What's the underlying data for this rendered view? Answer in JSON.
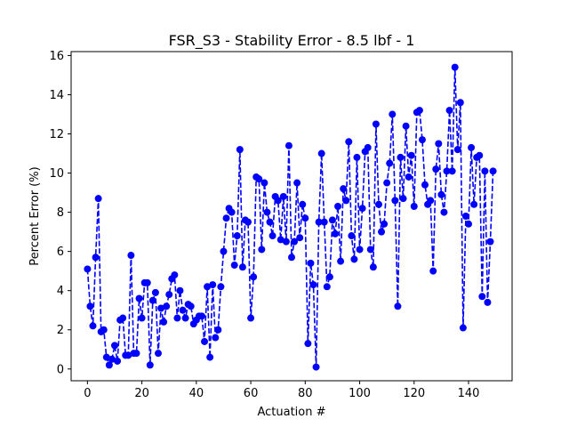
{
  "chart_data": {
    "type": "line",
    "title": "FSR_S3 - Stability Error - 8.5 lbf - 1",
    "xlabel": "Actuation #",
    "ylabel": "Percent Error (%)",
    "xlim": [
      -6,
      156
    ],
    "ylim": [
      -0.6,
      16.2
    ],
    "xticks": [
      0,
      20,
      40,
      60,
      80,
      100,
      120,
      140
    ],
    "yticks": [
      0,
      2,
      4,
      6,
      8,
      10,
      12,
      14,
      16
    ],
    "grid": false,
    "legend": false,
    "series": [
      {
        "color": "#0000ff",
        "line_style": "dashed",
        "marker": "circle",
        "x": [
          0,
          1,
          2,
          3,
          4,
          5,
          6,
          7,
          8,
          9,
          10,
          11,
          12,
          13,
          14,
          15,
          16,
          17,
          18,
          19,
          20,
          21,
          22,
          23,
          24,
          25,
          26,
          27,
          28,
          29,
          30,
          31,
          32,
          33,
          34,
          35,
          36,
          37,
          38,
          39,
          40,
          41,
          42,
          43,
          44,
          45,
          46,
          47,
          48,
          49,
          50,
          51,
          52,
          53,
          54,
          55,
          56,
          57,
          58,
          59,
          60,
          61,
          62,
          63,
          64,
          65,
          66,
          67,
          68,
          69,
          70,
          71,
          72,
          73,
          74,
          75,
          76,
          77,
          78,
          79,
          80,
          81,
          82,
          83,
          84,
          85,
          86,
          87,
          88,
          89,
          90,
          91,
          92,
          93,
          94,
          95,
          96,
          97,
          98,
          99,
          100,
          101,
          102,
          103,
          104,
          105,
          106,
          107,
          108,
          109,
          110,
          111,
          112,
          113,
          114,
          115,
          116,
          117,
          118,
          119,
          120,
          121,
          122,
          123,
          124,
          125,
          126,
          127,
          128,
          129,
          130,
          131,
          132,
          133,
          134,
          135,
          136,
          137,
          138,
          139,
          140,
          141,
          142,
          143,
          144,
          145,
          146,
          147,
          148,
          149
        ],
        "y": [
          5.1,
          3.2,
          2.2,
          5.7,
          8.7,
          1.9,
          2.0,
          0.6,
          0.2,
          0.5,
          1.2,
          0.4,
          2.5,
          2.6,
          0.7,
          0.7,
          5.8,
          0.8,
          0.8,
          3.6,
          2.6,
          4.4,
          4.4,
          0.2,
          3.5,
          3.9,
          0.8,
          3.1,
          2.4,
          3.2,
          3.8,
          4.6,
          4.8,
          2.6,
          4.0,
          3.0,
          2.6,
          3.3,
          3.2,
          2.3,
          2.5,
          2.7,
          2.7,
          1.4,
          4.2,
          0.6,
          4.3,
          1.6,
          2.0,
          4.2,
          6.0,
          7.7,
          8.2,
          8.0,
          5.3,
          6.8,
          11.2,
          5.2,
          7.6,
          7.5,
          2.6,
          4.7,
          9.8,
          9.7,
          6.1,
          9.5,
          8.0,
          7.5,
          6.8,
          8.8,
          8.6,
          6.6,
          8.8,
          6.5,
          11.4,
          5.7,
          6.5,
          9.5,
          6.7,
          8.4,
          7.7,
          1.3,
          5.4,
          4.3,
          0.1,
          7.5,
          11.0,
          7.5,
          4.2,
          4.7,
          7.6,
          6.9,
          8.3,
          5.5,
          9.2,
          8.6,
          11.6,
          6.8,
          5.6,
          10.8,
          6.1,
          8.2,
          11.1,
          11.3,
          6.1,
          5.2,
          12.5,
          8.4,
          7.0,
          7.4,
          9.5,
          10.5,
          13.0,
          8.6,
          3.2,
          10.8,
          8.7,
          12.4,
          9.8,
          10.9,
          8.3,
          13.1,
          13.2,
          11.7,
          9.4,
          8.4,
          8.6,
          5.0,
          10.2,
          11.5,
          8.9,
          8.0,
          10.1,
          13.2,
          10.1,
          15.4,
          11.2,
          13.6,
          2.1,
          7.8,
          7.4,
          11.3,
          8.4,
          10.8,
          10.9,
          3.7,
          10.1,
          3.4,
          6.5,
          10.1
        ]
      }
    ]
  }
}
